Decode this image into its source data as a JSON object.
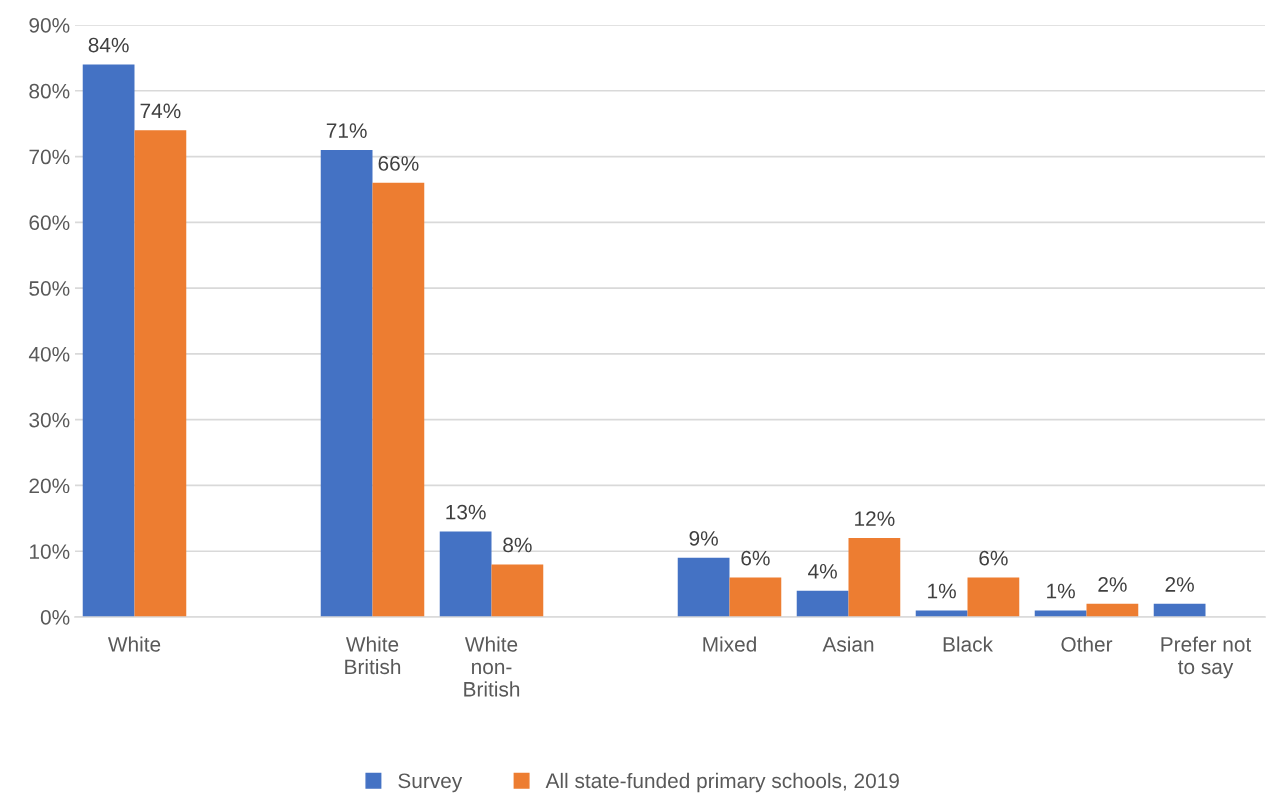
{
  "chart_data": {
    "type": "bar",
    "categories": [
      "White",
      null,
      "White\nBritish",
      "White\nnon-\nBritish",
      null,
      "Mixed",
      "Asian",
      "Black",
      "Other",
      "Prefer not\nto say"
    ],
    "series": [
      {
        "name": "Survey",
        "color": "#4472c4",
        "values": [
          84,
          null,
          71,
          13,
          null,
          9,
          4,
          1,
          1,
          2
        ],
        "value_labels": [
          "84%",
          null,
          "71%",
          "13%",
          null,
          "9%",
          "4%",
          "1%",
          "1%",
          "2%"
        ]
      },
      {
        "name": "All state-funded primary schools, 2019",
        "color": "#ed7d31",
        "values": [
          74,
          null,
          66,
          8,
          null,
          6,
          12,
          6,
          2,
          null
        ],
        "value_labels": [
          "74%",
          null,
          "66%",
          "8%",
          null,
          "6%",
          "12%",
          "6%",
          "2%",
          null
        ]
      }
    ],
    "ylim": [
      0,
      90
    ],
    "yticks": [
      {
        "value": 0,
        "label": "0%"
      },
      {
        "value": 10,
        "label": "10%"
      },
      {
        "value": 20,
        "label": "20%"
      },
      {
        "value": 30,
        "label": "30%"
      },
      {
        "value": 40,
        "label": "40%"
      },
      {
        "value": 50,
        "label": "50%"
      },
      {
        "value": 60,
        "label": "60%"
      },
      {
        "value": 70,
        "label": "70%"
      },
      {
        "value": 80,
        "label": "80%"
      },
      {
        "value": 90,
        "label": "90%"
      }
    ],
    "grid": "y",
    "legend": "bottom"
  }
}
